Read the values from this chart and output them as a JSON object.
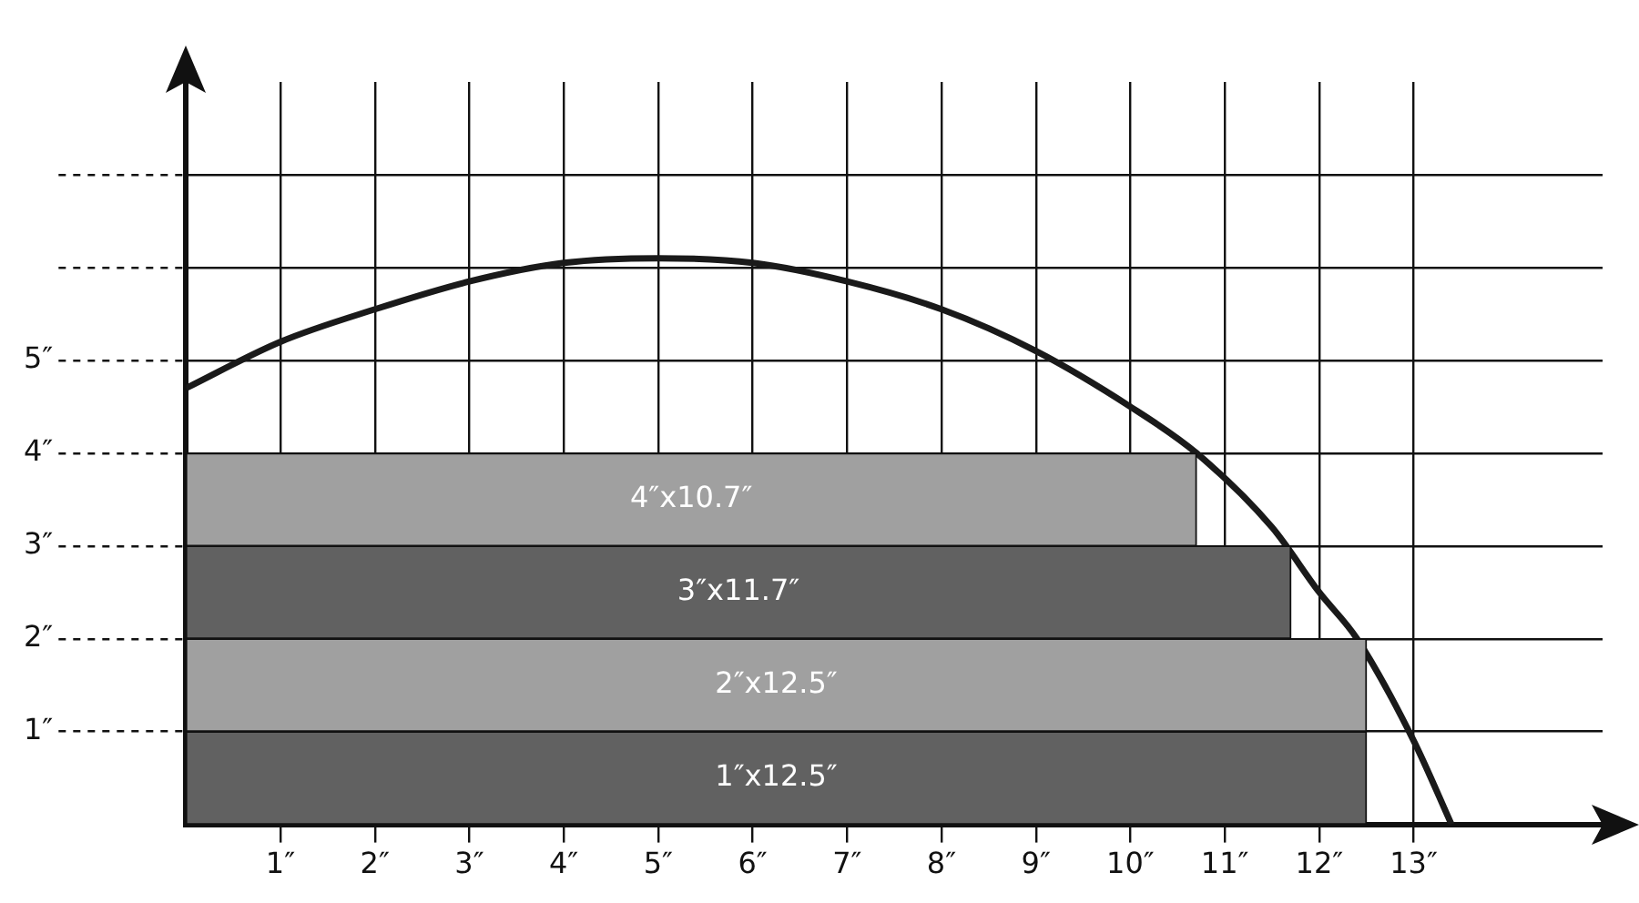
{
  "chart_data": {
    "type": "bar",
    "orientation": "horizontal",
    "series": [
      {
        "x": [
          3.5,
          2.5,
          1.5,
          0.5
        ],
        "values": [
          10.7,
          11.7,
          12.5,
          12.5
        ],
        "colors": [
          "#a0a0a0",
          "#616161",
          "#a0a0a0",
          "#616161"
        ],
        "value_labels": [
          "4″x10.7″",
          "3″x11.7″",
          "2″x12.5″",
          "1″x12.5″"
        ]
      },
      {
        "type": "line",
        "color": "#1a1a1a",
        "marker": "none",
        "x": [
          4.7,
          5.2,
          5.55,
          5.85,
          6.05,
          6.1,
          6.05,
          5.85,
          5.55,
          5.1,
          4.5,
          4.0,
          3.2,
          2.5,
          2.0,
          0.9,
          0
        ],
        "values": [
          0,
          1,
          2,
          3,
          4,
          5,
          6,
          7,
          8,
          9,
          10,
          10.7,
          11.5,
          12,
          12.4,
          13,
          13.4
        ]
      }
    ],
    "xlim": [
      0,
      15
    ],
    "xticks": [
      {
        "value": 1,
        "label": "1″"
      },
      {
        "value": 2,
        "label": "2″"
      },
      {
        "value": 3,
        "label": "3″"
      },
      {
        "value": 4,
        "label": "4″"
      },
      {
        "value": 5,
        "label": "5″"
      },
      {
        "value": 6,
        "label": "6″"
      },
      {
        "value": 7,
        "label": "7″"
      },
      {
        "value": 8,
        "label": "8″"
      },
      {
        "value": 9,
        "label": "9″"
      },
      {
        "value": 10,
        "label": "10″"
      },
      {
        "value": 11,
        "label": "11″"
      },
      {
        "value": 12,
        "label": "12″"
      },
      {
        "value": 13,
        "label": "13″"
      }
    ],
    "ylim": [
      0,
      8
    ],
    "yticks": [
      {
        "value": 1,
        "label": "1″"
      },
      {
        "value": 2,
        "label": "2″"
      },
      {
        "value": 3,
        "label": "3″"
      },
      {
        "value": 4,
        "label": "4″"
      },
      {
        "value": 5,
        "label": "5″"
      },
      {
        "value": 6,
        "label": null
      },
      {
        "value": 7,
        "label": null
      }
    ],
    "grid": true
  }
}
